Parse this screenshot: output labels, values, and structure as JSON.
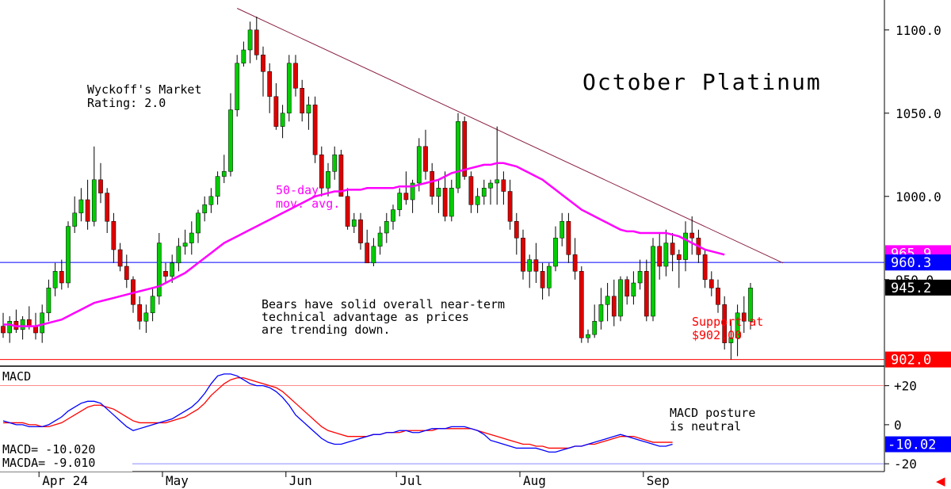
{
  "chart_data": [
    {
      "type": "candlestick",
      "title": "October Platinum",
      "ylim": [
        898,
        1118
      ],
      "y_ticks": [
        {
          "value": 1100,
          "label": "1100.0"
        },
        {
          "value": 1050,
          "label": "1050.0"
        },
        {
          "value": 1000,
          "label": "1000.0"
        },
        {
          "value": 950,
          "label": "950.0"
        }
      ],
      "x_ticks": [
        {
          "day": 6,
          "label": "Apr 24"
        },
        {
          "day": 25,
          "label": "May"
        },
        {
          "day": 44,
          "label": "Jun"
        },
        {
          "day": 61,
          "label": "Jul"
        },
        {
          "day": 80,
          "label": "Aug"
        },
        {
          "day": 99,
          "label": "Sep"
        }
      ],
      "candles": [
        [
          922,
          930,
          915,
          918
        ],
        [
          918,
          928,
          912,
          925
        ],
        [
          925,
          932,
          918,
          920
        ],
        [
          920,
          928,
          914,
          926
        ],
        [
          926,
          934,
          920,
          922
        ],
        [
          922,
          930,
          914,
          918
        ],
        [
          918,
          935,
          912,
          930
        ],
        [
          930,
          950,
          925,
          945
        ],
        [
          945,
          960,
          940,
          955
        ],
        [
          955,
          962,
          944,
          948
        ],
        [
          948,
          985,
          945,
          982
        ],
        [
          982,
          1000,
          978,
          990
        ],
        [
          990,
          1005,
          985,
          998
        ],
        [
          998,
          1010,
          980,
          985
        ],
        [
          985,
          1030,
          982,
          1010
        ],
        [
          1010,
          1020,
          996,
          1002
        ],
        [
          1002,
          1005,
          978,
          985
        ],
        [
          985,
          990,
          960,
          968
        ],
        [
          968,
          972,
          955,
          958
        ],
        [
          958,
          965,
          945,
          950
        ],
        [
          950,
          952,
          930,
          935
        ],
        [
          935,
          940,
          920,
          925
        ],
        [
          925,
          935,
          918,
          930
        ],
        [
          930,
          945,
          925,
          940
        ],
        [
          940,
          978,
          935,
          972
        ],
        [
          955,
          960,
          948,
          952
        ],
        [
          952,
          965,
          948,
          960
        ],
        [
          960,
          975,
          955,
          970
        ],
        [
          970,
          980,
          965,
          972
        ],
        [
          972,
          985,
          965,
          978
        ],
        [
          978,
          992,
          972,
          990
        ],
        [
          990,
          1000,
          985,
          995
        ],
        [
          995,
          1005,
          990,
          1000
        ],
        [
          1000,
          1015,
          995,
          1012
        ],
        [
          1012,
          1025,
          1008,
          1015
        ],
        [
          1015,
          1062,
          1012,
          1052
        ],
        [
          1052,
          1085,
          1048,
          1080
        ],
        [
          1080,
          1093,
          1078,
          1088
        ],
        [
          1088,
          1105,
          1080,
          1100
        ],
        [
          1100,
          1108,
          1082,
          1085
        ],
        [
          1085,
          1090,
          1060,
          1075
        ],
        [
          1075,
          1080,
          1050,
          1060
        ],
        [
          1060,
          1068,
          1040,
          1042
        ],
        [
          1042,
          1055,
          1035,
          1050
        ],
        [
          1050,
          1085,
          1045,
          1080
        ],
        [
          1080,
          1085,
          1060,
          1065
        ],
        [
          1065,
          1070,
          1045,
          1050
        ],
        [
          1050,
          1060,
          1040,
          1055
        ],
        [
          1055,
          1060,
          1020,
          1025
        ],
        [
          1025,
          1030,
          1000,
          1005
        ],
        [
          1005,
          1020,
          1000,
          1015
        ],
        [
          1015,
          1030,
          1010,
          1025
        ],
        [
          1025,
          1028,
          1000,
          1000
        ],
        [
          1000,
          1005,
          980,
          982
        ],
        [
          982,
          990,
          978,
          986
        ],
        [
          986,
          990,
          968,
          972
        ],
        [
          972,
          980,
          960,
          960
        ],
        [
          960,
          975,
          958,
          970
        ],
        [
          970,
          982,
          965,
          978
        ],
        [
          978,
          990,
          972,
          985
        ],
        [
          985,
          995,
          980,
          992
        ],
        [
          992,
          1005,
          988,
          1002
        ],
        [
          1002,
          1015,
          995,
          998
        ],
        [
          998,
          1010,
          990,
          1008
        ],
        [
          1008,
          1035,
          1003,
          1030
        ],
        [
          1030,
          1040,
          1010,
          1015
        ],
        [
          1015,
          1020,
          995,
          1000
        ],
        [
          1000,
          1010,
          990,
          1005
        ],
        [
          1005,
          1015,
          985,
          988
        ],
        [
          988,
          1010,
          985,
          1005
        ],
        [
          1005,
          1050,
          1002,
          1045
        ],
        [
          1045,
          1048,
          1010,
          1012
        ],
        [
          1012,
          1015,
          990,
          995
        ],
        [
          995,
          1005,
          990,
          1000
        ],
        [
          1000,
          1010,
          995,
          1005
        ],
        [
          1005,
          1010,
          995,
          1008
        ],
        [
          1008,
          1042,
          995,
          1010
        ],
        [
          1010,
          1015,
          995,
          1003
        ],
        [
          1003,
          1010,
          980,
          985
        ],
        [
          985,
          990,
          965,
          975
        ],
        [
          975,
          980,
          950,
          955
        ],
        [
          955,
          965,
          945,
          962
        ],
        [
          962,
          972,
          948,
          955
        ],
        [
          955,
          960,
          938,
          945
        ],
        [
          945,
          960,
          940,
          958
        ],
        [
          958,
          982,
          955,
          975
        ],
        [
          975,
          990,
          970,
          985
        ],
        [
          985,
          990,
          960,
          965
        ],
        [
          965,
          975,
          950,
          955
        ],
        [
          955,
          958,
          912,
          915
        ],
        [
          915,
          920,
          912,
          917
        ],
        [
          917,
          935,
          915,
          925
        ],
        [
          925,
          945,
          920,
          935
        ],
        [
          935,
          948,
          925,
          940
        ],
        [
          940,
          950,
          922,
          928
        ],
        [
          928,
          952,
          925,
          950
        ],
        [
          950,
          952,
          935,
          940
        ],
        [
          940,
          955,
          935,
          948
        ],
        [
          948,
          962,
          944,
          955
        ],
        [
          955,
          962,
          925,
          928
        ],
        [
          928,
          975,
          925,
          970
        ],
        [
          970,
          978,
          950,
          958
        ],
        [
          958,
          980,
          952,
          972
        ],
        [
          972,
          978,
          955,
          965
        ],
        [
          965,
          968,
          945,
          962
        ],
        [
          962,
          985,
          955,
          978
        ],
        [
          978,
          988,
          965,
          975
        ],
        [
          975,
          980,
          960,
          965
        ],
        [
          965,
          968,
          945,
          950
        ],
        [
          950,
          955,
          940,
          945
        ],
        [
          945,
          950,
          930,
          935
        ],
        [
          935,
          940,
          908,
          912
        ],
        [
          912,
          925,
          902,
          915
        ],
        [
          915,
          935,
          904,
          930
        ],
        [
          930,
          940,
          918,
          925
        ],
        [
          925,
          948,
          920,
          945
        ]
      ],
      "series": [
        {
          "values": [
            923,
            923,
            922,
            922,
            922,
            922,
            923,
            924,
            925,
            926,
            928,
            930,
            932,
            934,
            936,
            937,
            938,
            939,
            940,
            941,
            942,
            943,
            944,
            945,
            946,
            948,
            950,
            952,
            954,
            957,
            960,
            963,
            966,
            969,
            972,
            974,
            976,
            978,
            980,
            982,
            984,
            986,
            988,
            990,
            992,
            994,
            996,
            998,
            1000,
            1001,
            1002,
            1003,
            1003,
            1004,
            1004,
            1004,
            1005,
            1005,
            1005,
            1005,
            1005,
            1006,
            1006,
            1006,
            1007,
            1008,
            1009,
            1010,
            1012,
            1014,
            1015,
            1016,
            1017,
            1018,
            1019,
            1019,
            1020,
            1020,
            1019,
            1018,
            1016,
            1014,
            1012,
            1010,
            1007,
            1004,
            1001,
            998,
            995,
            992,
            990,
            988,
            986,
            984,
            982,
            980,
            979,
            979,
            978,
            978,
            978,
            978,
            978,
            977,
            976,
            974,
            972,
            970,
            968,
            967,
            966,
            965
          ]
        }
      ],
      "trendline": {
        "from": [
          36,
          1113
        ],
        "to": [
          120,
          960
        ]
      },
      "hline_blue": 960.3,
      "hline_red": 902.0,
      "price_tags": [
        {
          "label": "965.9",
          "value": 965.9,
          "color": "#ff00ff"
        },
        {
          "label": "960.3",
          "value": 960.3,
          "color": "#0000ff"
        },
        {
          "label": "945.2",
          "value": 945.2,
          "color": "#000000"
        },
        {
          "label": "902.0",
          "value": 902.0,
          "color": "#ff0000"
        }
      ],
      "annotations": {
        "rating_line1": "Wyckoff's Market",
        "rating_line2": "Rating: 2.0",
        "ma_line1": "50-day",
        "ma_line2": "mov. avg.",
        "bears_line1": "Bears have solid overall near-term",
        "bears_line2": "technical advantage as prices",
        "bears_line3": "are trending down.",
        "support_line1": "Support at",
        "support_line2": "$902.00"
      }
    },
    {
      "type": "line",
      "title": "MACD",
      "ylim": [
        -24,
        30
      ],
      "y_ticks": [
        {
          "value": 20,
          "label": "+20"
        },
        {
          "value": 0,
          "label": "0"
        },
        {
          "value": -20,
          "label": "-20"
        }
      ],
      "readout_macd": "MACD= -10.020",
      "readout_macda": "MACDA= -9.010",
      "annotation_line1": "MACD posture",
      "annotation_line2": "is neutral",
      "tag": {
        "label": "-10.02",
        "color": "#0000ff"
      },
      "series": [
        {
          "color": "#0000ff",
          "values": [
            2,
            1,
            0,
            0,
            -1,
            -1,
            -1,
            0,
            2,
            4,
            7,
            9,
            11,
            12,
            12,
            11,
            8,
            5,
            2,
            -1,
            -3,
            -2,
            -1,
            0,
            1,
            2,
            3,
            5,
            7,
            9,
            12,
            16,
            21,
            25,
            26,
            26,
            25,
            23,
            21,
            20,
            20,
            19,
            17,
            14,
            10,
            5,
            2,
            -1,
            -4,
            -7,
            -9,
            -10,
            -10,
            -9,
            -8,
            -7,
            -6,
            -5,
            -5,
            -4,
            -4,
            -3,
            -3,
            -4,
            -4,
            -3,
            -2,
            -2,
            -2,
            -1,
            -1,
            -1,
            -2,
            -3,
            -5,
            -8,
            -9,
            -10,
            -11,
            -12,
            -12,
            -12,
            -12,
            -13,
            -14,
            -14,
            -13,
            -12,
            -11,
            -11,
            -10,
            -9,
            -8,
            -7,
            -6,
            -5,
            -6,
            -7,
            -8,
            -9,
            -10,
            -11,
            -11,
            -10
          ]
        },
        {
          "color": "#ff0000",
          "values": [
            1,
            1,
            1,
            1,
            0,
            0,
            -1,
            -1,
            0,
            1,
            3,
            5,
            7,
            9,
            10,
            10,
            9,
            8,
            6,
            4,
            2,
            1,
            1,
            1,
            1,
            1,
            2,
            3,
            4,
            6,
            8,
            11,
            15,
            18,
            21,
            23,
            24,
            24,
            23,
            22,
            21,
            20,
            19,
            17,
            14,
            11,
            8,
            5,
            2,
            -1,
            -3,
            -4,
            -5,
            -6,
            -6,
            -6,
            -6,
            -5,
            -5,
            -4,
            -4,
            -4,
            -3,
            -3,
            -3,
            -3,
            -3,
            -2,
            -2,
            -2,
            -2,
            -2,
            -2,
            -3,
            -4,
            -5,
            -6,
            -7,
            -8,
            -9,
            -10,
            -10,
            -11,
            -11,
            -12,
            -12,
            -12,
            -12,
            -11,
            -11,
            -10,
            -10,
            -9,
            -8,
            -7,
            -6,
            -6,
            -6,
            -7,
            -8,
            -9,
            -9,
            -9,
            -9
          ]
        }
      ]
    }
  ]
}
